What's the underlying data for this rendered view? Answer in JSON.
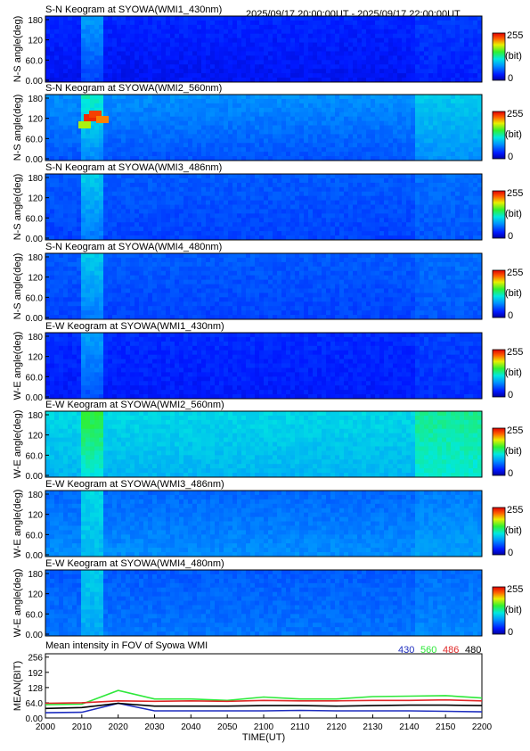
{
  "header": {
    "time_range": "2025/09/17 20:00:00UT - 2025/09/17 22:00:00UT"
  },
  "colorbar": {
    "max_label": "255",
    "unit_label": "(bit)",
    "min_label": "0"
  },
  "chart_data": [
    {
      "type": "heatmap",
      "title": "S-N Keogram at SYOWA(WMI1_430nm)",
      "ylabel": "N-S angle(deg)",
      "yticks": [
        "180",
        "120",
        "60.0",
        "0.00"
      ],
      "ylim": [
        0,
        180
      ],
      "clim": [
        0,
        255
      ],
      "colormap": "blue-green-red",
      "base_level": 0.14,
      "secondary_level": 0.1
    },
    {
      "type": "heatmap",
      "title": "S-N Keogram at SYOWA(WMI2_560nm)",
      "ylabel": "N-S angle(deg)",
      "yticks": [
        "180",
        "120",
        "60.0",
        "0.00"
      ],
      "ylim": [
        0,
        180
      ],
      "clim": [
        0,
        255
      ],
      "colormap": "blue-green-red",
      "base_level": 0.3,
      "secondary_level": 0.2
    },
    {
      "type": "heatmap",
      "title": "S-N Keogram at SYOWA(WMI3_486nm)",
      "ylabel": "N-S angle(deg)",
      "yticks": [
        "180",
        "120",
        "60.0",
        "0.00"
      ],
      "ylim": [
        0,
        180
      ],
      "clim": [
        0,
        255
      ],
      "colormap": "blue-green-red",
      "base_level": 0.22,
      "secondary_level": 0.18
    },
    {
      "type": "heatmap",
      "title": "S-N Keogram at SYOWA(WMI4_480nm)",
      "ylabel": "N-S angle(deg)",
      "yticks": [
        "180",
        "120",
        "60.0",
        "0.00"
      ],
      "ylim": [
        0,
        180
      ],
      "clim": [
        0,
        255
      ],
      "colormap": "blue-green-red",
      "base_level": 0.22,
      "secondary_level": 0.18
    },
    {
      "type": "heatmap",
      "title": "E-W Keogram at SYOWA(WMI1_430nm)",
      "ylabel": "W-E angle(deg)",
      "yticks": [
        "180",
        "120",
        "60.0",
        "0.00"
      ],
      "ylim": [
        0,
        180
      ],
      "clim": [
        0,
        255
      ],
      "colormap": "blue-green-red",
      "base_level": 0.15,
      "secondary_level": 0.12
    },
    {
      "type": "heatmap",
      "title": "E-W Keogram at SYOWA(WMI2_560nm)",
      "ylabel": "W-E angle(deg)",
      "yticks": [
        "180",
        "120",
        "60.0",
        "0.00"
      ],
      "ylim": [
        0,
        180
      ],
      "clim": [
        0,
        255
      ],
      "colormap": "blue-green-red",
      "base_level": 0.42,
      "secondary_level": 0.36
    },
    {
      "type": "heatmap",
      "title": "E-W Keogram at SYOWA(WMI3_486nm)",
      "ylabel": "W-E angle(deg)",
      "yticks": [
        "180",
        "120",
        "60.0",
        "0.00"
      ],
      "ylim": [
        0,
        180
      ],
      "clim": [
        0,
        255
      ],
      "colormap": "blue-green-red",
      "base_level": 0.24,
      "secondary_level": 0.3
    },
    {
      "type": "heatmap",
      "title": "E-W Keogram at SYOWA(WMI4_480nm)",
      "ylabel": "W-E angle(deg)",
      "yticks": [
        "180",
        "120",
        "60.0",
        "0.00"
      ],
      "ylim": [
        0,
        180
      ],
      "clim": [
        0,
        255
      ],
      "colormap": "blue-green-red",
      "base_level": 0.22,
      "secondary_level": 0.26
    },
    {
      "type": "line",
      "title": "Mean intensity in FOV of Syowa WMI",
      "ylabel": "MEAN(BIT)",
      "xlabel": "TIME(UT)",
      "ylim": [
        0,
        270
      ],
      "yticks": [
        "256",
        "192",
        "128",
        "64.0",
        "0.00"
      ],
      "x": [
        "2000",
        "2010",
        "2020",
        "2030",
        "2040",
        "2050",
        "2100",
        "2110",
        "2120",
        "2130",
        "2140",
        "2150",
        "2200"
      ],
      "series": [
        {
          "name": "430",
          "color": "#1f2fbf",
          "values": [
            22,
            24,
            62,
            30,
            30,
            30,
            30,
            32,
            30,
            30,
            30,
            28,
            26
          ]
        },
        {
          "name": "560",
          "color": "#2ee83a",
          "values": [
            56,
            58,
            116,
            80,
            80,
            74,
            88,
            80,
            80,
            90,
            92,
            94,
            84
          ]
        },
        {
          "name": "486",
          "color": "#e02828",
          "values": [
            62,
            64,
            72,
            70,
            72,
            70,
            74,
            72,
            72,
            74,
            74,
            76,
            72
          ]
        },
        {
          "name": "480",
          "color": "#000000",
          "values": [
            40,
            44,
            62,
            50,
            50,
            50,
            52,
            52,
            50,
            52,
            54,
            54,
            52
          ]
        }
      ]
    }
  ]
}
